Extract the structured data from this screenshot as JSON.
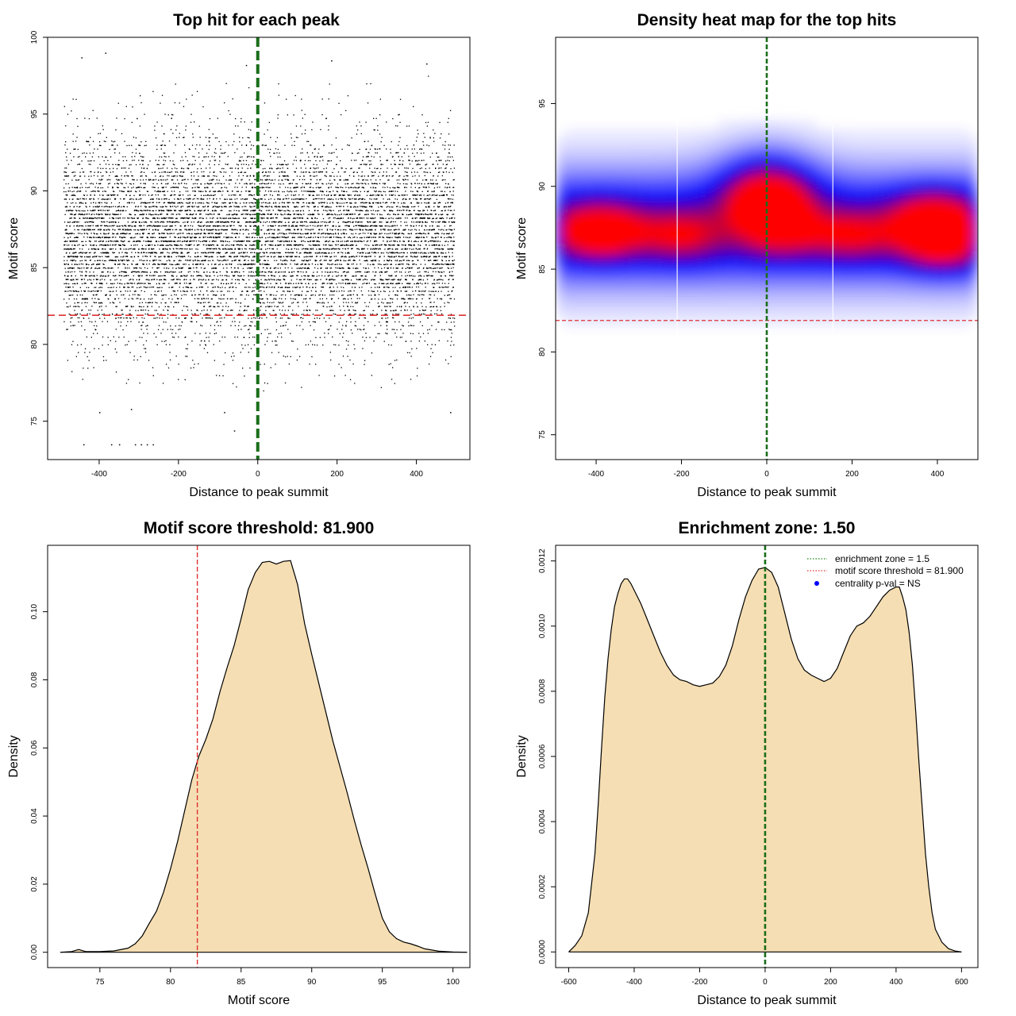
{
  "chart_data": [
    {
      "id": "scatter",
      "type": "scatter",
      "title": "Top hit for each peak",
      "xlabel": "Distance to peak summit",
      "ylabel": "Motif score",
      "xlim": [
        -530,
        535
      ],
      "ylim": [
        72.5,
        100
      ],
      "xticks": [
        -400,
        -200,
        0,
        200,
        400
      ],
      "yticks": [
        75,
        80,
        85,
        90,
        95,
        100
      ],
      "x_range": [
        -490,
        495
      ],
      "score_center": 87,
      "score_spread": 3.2,
      "n_points": 10000,
      "threshold": 81.9,
      "center": 0,
      "threshold_color": "#e03030",
      "center_color": "#1a6e1a",
      "point_color": "#000000",
      "outliers": [
        {
          "x": -440,
          "y": 73.5
        },
        {
          "x": -370,
          "y": 73.5
        },
        {
          "x": -350,
          "y": 73.5
        },
        {
          "x": -310,
          "y": 73.5
        },
        {
          "x": -295,
          "y": 73.5
        },
        {
          "x": -280,
          "y": 73.5
        },
        {
          "x": -265,
          "y": 73.5
        },
        {
          "x": -400,
          "y": 75.6
        },
        {
          "x": -320,
          "y": 75.8
        },
        {
          "x": -85,
          "y": 75.6
        },
        {
          "x": -60,
          "y": 74.4
        },
        {
          "x": 485,
          "y": 75.6
        },
        {
          "x": -385,
          "y": 99
        },
        {
          "x": -445,
          "y": 98.7
        },
        {
          "x": 425,
          "y": 98.3
        },
        {
          "x": 185,
          "y": 98.5
        },
        {
          "x": -30,
          "y": 98.2
        }
      ]
    },
    {
      "id": "heatmap",
      "type": "heatmap",
      "title": "Density heat map for the top hits",
      "xlabel": "Distance to peak summit",
      "ylabel": "Motif score",
      "xlim": [
        -495,
        495
      ],
      "ylim": [
        73.5,
        99
      ],
      "xticks": [
        -400,
        -200,
        0,
        200,
        400
      ],
      "yticks": [
        75,
        80,
        85,
        90,
        95
      ],
      "threshold": 81.9,
      "center": 0,
      "white_lines_x": [
        -210,
        155
      ],
      "colormap": [
        "#ffffff",
        "#0000ff",
        "#ff0000"
      ],
      "hotspots": [
        {
          "x": -390,
          "y": 87.3,
          "weight": 1.0
        },
        {
          "x": 5,
          "y": 89.2,
          "weight": 0.9
        },
        {
          "x": 30,
          "y": 87.2,
          "weight": 0.6
        },
        {
          "x": 390,
          "y": 88.2,
          "weight": 0.85
        },
        {
          "x": 410,
          "y": 86.5,
          "weight": 0.85
        },
        {
          "x": -200,
          "y": 87.0,
          "weight": 0.55
        },
        {
          "x": 200,
          "y": 87.0,
          "weight": 0.55
        }
      ]
    },
    {
      "id": "scoredensity",
      "type": "area",
      "title": "Motif score threshold: 81.900",
      "xlabel": "Motif score",
      "ylabel": "Density",
      "xlim": [
        71.3,
        101.2
      ],
      "ylim": [
        -0.0045,
        0.1195
      ],
      "xticks": [
        75,
        80,
        85,
        90,
        95,
        100
      ],
      "yticks": [
        0.0,
        0.02,
        0.04,
        0.06,
        0.08,
        0.1
      ],
      "ytick_labels": [
        "0.00",
        "0.02",
        "0.04",
        "0.06",
        "0.08",
        "0.10"
      ],
      "threshold": 81.9,
      "fill": "#f5deb3",
      "x": [
        72.2,
        73,
        73.5,
        74,
        75,
        76,
        77,
        77.5,
        78,
        78.5,
        79,
        79.5,
        80,
        80.5,
        81,
        81.5,
        82,
        82.5,
        83,
        83.5,
        84,
        84.5,
        85,
        85.5,
        86,
        86.5,
        87,
        87.5,
        88,
        88.5,
        89,
        89.5,
        90,
        90.5,
        91,
        91.5,
        92,
        92.5,
        93,
        93.5,
        94,
        94.5,
        95,
        95.5,
        96,
        96.5,
        97,
        97.5,
        98,
        99,
        100,
        101
      ],
      "y": [
        0.0,
        0.0002,
        0.0008,
        0.0002,
        0.0002,
        0.0004,
        0.0012,
        0.0025,
        0.0048,
        0.0085,
        0.012,
        0.0175,
        0.0245,
        0.0325,
        0.0415,
        0.0505,
        0.0575,
        0.0625,
        0.0685,
        0.0765,
        0.0835,
        0.09,
        0.098,
        0.1065,
        0.1115,
        0.1145,
        0.1148,
        0.114,
        0.1148,
        0.115,
        0.108,
        0.0965,
        0.0875,
        0.079,
        0.0705,
        0.062,
        0.0545,
        0.047,
        0.039,
        0.0315,
        0.0245,
        0.017,
        0.01,
        0.006,
        0.004,
        0.003,
        0.0025,
        0.0018,
        0.001,
        0.0003,
        0.0001,
        0.0
      ]
    },
    {
      "id": "distdensity",
      "type": "area",
      "title": "Enrichment zone: 1.50",
      "xlabel": "Distance to peak summit",
      "ylabel": "Density",
      "xlim": [
        -640,
        650
      ],
      "ylim": [
        -4.8e-05,
        0.001248
      ],
      "xticks": [
        -600,
        -400,
        -200,
        0,
        200,
        400,
        600
      ],
      "yticks": [
        0.0,
        0.0002,
        0.0004,
        0.0006,
        0.0008,
        0.001,
        0.0012
      ],
      "ytick_labels": [
        "0.0000",
        "0.0002",
        "0.0004",
        "0.0006",
        "0.0008",
        "0.0010",
        "0.0012"
      ],
      "center": 0,
      "fill": "#f5deb3",
      "x": [
        -600,
        -580,
        -560,
        -540,
        -520,
        -510,
        -500,
        -490,
        -480,
        -470,
        -460,
        -450,
        -440,
        -430,
        -420,
        -410,
        -400,
        -380,
        -360,
        -340,
        -320,
        -300,
        -280,
        -260,
        -240,
        -220,
        -200,
        -180,
        -160,
        -140,
        -120,
        -100,
        -80,
        -60,
        -40,
        -20,
        0,
        20,
        40,
        60,
        80,
        100,
        120,
        140,
        160,
        180,
        200,
        220,
        240,
        260,
        280,
        300,
        320,
        340,
        360,
        380,
        400,
        410,
        420,
        430,
        440,
        450,
        460,
        470,
        480,
        490,
        500,
        510,
        520,
        540,
        560,
        580,
        600
      ],
      "y": [
        0.0,
        2e-05,
        5e-05,
        0.00012,
        0.0003,
        0.00045,
        0.00062,
        0.00078,
        0.0009,
        0.00099,
        0.00106,
        0.0011,
        0.00113,
        0.001145,
        0.001145,
        0.00113,
        0.00111,
        0.00107,
        0.00102,
        0.00097,
        0.00092,
        0.00088,
        0.00085,
        0.000835,
        0.00083,
        0.00082,
        0.000815,
        0.00082,
        0.000825,
        0.000845,
        0.00088,
        0.00094,
        0.00102,
        0.00109,
        0.00114,
        0.001175,
        0.00118,
        0.001165,
        0.00112,
        0.00104,
        0.00096,
        0.0009,
        0.000865,
        0.00085,
        0.00084,
        0.00083,
        0.00084,
        0.00087,
        0.00092,
        0.00097,
        0.001,
        0.00101,
        0.00103,
        0.00106,
        0.00109,
        0.00111,
        0.00112,
        0.00112,
        0.00109,
        0.00105,
        0.00098,
        0.00088,
        0.00074,
        0.00058,
        0.00044,
        0.0003,
        0.0002,
        0.00012,
        7e-05,
        3e-05,
        1e-05,
        3e-06,
        0.0
      ],
      "legend": {
        "position": "top-right",
        "entries": [
          {
            "label": "enrichment zone = 1.5",
            "kind": "dotted-line",
            "color": "#1a8a1a"
          },
          {
            "label": "motif score threshold = 81.900",
            "kind": "dotted-line",
            "color": "#e03030"
          },
          {
            "label": "centrality p-val = NS",
            "kind": "point",
            "color": "#0000ff"
          }
        ]
      }
    }
  ]
}
